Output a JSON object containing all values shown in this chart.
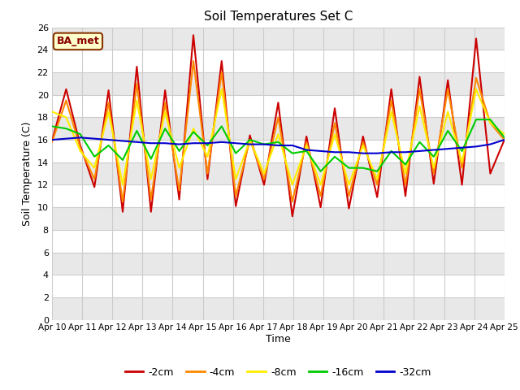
{
  "title": "Soil Temperatures Set C",
  "xlabel": "Time",
  "ylabel": "Soil Temperature (C)",
  "annotation": "BA_met",
  "ylim": [
    0,
    26
  ],
  "yticks": [
    0,
    2,
    4,
    6,
    8,
    10,
    12,
    14,
    16,
    18,
    20,
    22,
    24,
    26
  ],
  "xtick_labels": [
    "Apr 10",
    "Apr 11",
    "Apr 12",
    "Apr 13",
    "Apr 14",
    "Apr 15",
    "Apr 16",
    "Apr 17",
    "Apr 18",
    "Apr 19",
    "Apr 20",
    "Apr 21",
    "Apr 22",
    "Apr 23",
    "Apr 24",
    "Apr 25"
  ],
  "series": {
    "neg2cm": {
      "color": "#cc0000",
      "label": "-2cm",
      "values": [
        15.9,
        20.5,
        15.5,
        11.8,
        20.4,
        9.6,
        22.5,
        9.6,
        20.4,
        10.7,
        25.3,
        12.5,
        23.0,
        10.1,
        16.4,
        12.0,
        19.3,
        9.2,
        16.3,
        10.0,
        18.8,
        9.9,
        16.3,
        10.9,
        20.5,
        11.0,
        21.6,
        12.1,
        21.3,
        12.0,
        25.0,
        13.0,
        16.0
      ]
    },
    "neg4cm": {
      "color": "#ff8800",
      "label": "-4cm",
      "values": [
        15.8,
        19.5,
        15.3,
        12.5,
        19.3,
        10.5,
        21.0,
        10.7,
        19.3,
        11.5,
        23.0,
        13.0,
        22.0,
        11.0,
        16.0,
        12.5,
        18.0,
        10.5,
        15.8,
        11.0,
        17.5,
        11.0,
        15.8,
        12.0,
        19.5,
        12.0,
        20.5,
        13.0,
        20.5,
        13.5,
        21.5,
        17.5,
        16.0
      ]
    },
    "neg8cm": {
      "color": "#ffee00",
      "label": "-8cm",
      "values": [
        18.5,
        18.0,
        15.0,
        13.5,
        18.5,
        12.0,
        19.5,
        12.5,
        18.5,
        13.5,
        17.0,
        14.5,
        20.5,
        12.5,
        16.0,
        13.0,
        16.5,
        12.0,
        15.5,
        12.0,
        16.5,
        12.0,
        15.5,
        12.5,
        18.5,
        13.0,
        19.0,
        13.5,
        18.5,
        14.0,
        20.5,
        17.5,
        16.5
      ]
    },
    "neg16cm": {
      "color": "#00cc00",
      "label": "-16cm",
      "values": [
        17.2,
        17.0,
        16.5,
        14.5,
        15.5,
        14.2,
        16.8,
        14.3,
        17.0,
        15.0,
        16.7,
        15.5,
        17.2,
        14.8,
        16.0,
        15.6,
        15.8,
        14.8,
        15.0,
        13.2,
        14.5,
        13.5,
        13.5,
        13.2,
        15.0,
        13.8,
        15.8,
        14.5,
        16.8,
        15.0,
        17.8,
        17.8,
        16.2
      ]
    },
    "neg32cm": {
      "color": "#0000cc",
      "label": "-32cm",
      "values": [
        16.0,
        16.1,
        16.2,
        16.1,
        16.0,
        15.9,
        15.8,
        15.7,
        15.7,
        15.6,
        15.7,
        15.7,
        15.8,
        15.7,
        15.6,
        15.6,
        15.5,
        15.5,
        15.1,
        15.0,
        14.9,
        14.9,
        14.8,
        14.8,
        14.9,
        14.9,
        15.0,
        15.1,
        15.2,
        15.3,
        15.4,
        15.6,
        16.0
      ]
    }
  },
  "fig_bg_color": "#ffffff",
  "plot_bg_color": "#ffffff",
  "band_color": "#e8e8e8",
  "grid_color": "#cccccc",
  "annotation_bg": "#ffffcc",
  "annotation_border": "#883300",
  "annotation_text_color": "#880000"
}
